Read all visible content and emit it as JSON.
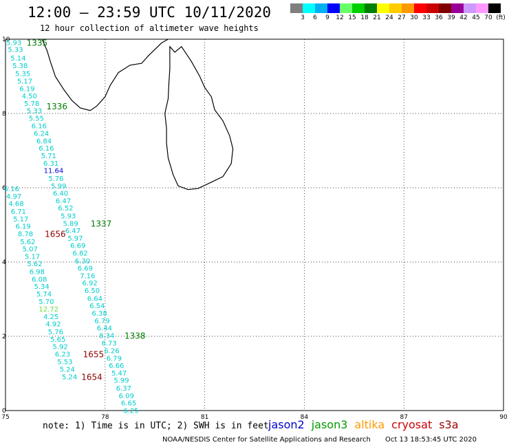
{
  "header": {
    "title": "12:00 – 23:59 UTC 10/11/2020",
    "subtitle": "12 hour collection of altimeter wave heights"
  },
  "legend_scale": {
    "colors": [
      "#7f7f7f",
      "#00ffff",
      "#00b0f0",
      "#0000ff",
      "#66ff66",
      "#00d000",
      "#008000",
      "#ffff00",
      "#ffcc00",
      "#ff9900",
      "#ff0000",
      "#cc0000",
      "#800000",
      "#990099",
      "#cc99ff",
      "#ff99ff",
      "#000000"
    ],
    "labels": [
      "3",
      "6",
      "9",
      "12",
      "15",
      "18",
      "21",
      "24",
      "27",
      "30",
      "33",
      "36",
      "39",
      "42",
      "45",
      "70",
      "(ft)"
    ]
  },
  "map": {
    "x_axis": {
      "labels": [
        "75",
        "78",
        "81",
        "84",
        "87",
        "90"
      ],
      "values": [
        75,
        78,
        81,
        84,
        87,
        90
      ]
    },
    "y_axis": {
      "labels": [
        "0",
        "2",
        "4",
        "6",
        "8",
        "10"
      ],
      "values": [
        0,
        2,
        4,
        6,
        8,
        10
      ]
    },
    "value_colors": {
      "cyan": "#00cccc",
      "blue": "#0000dd",
      "light_green": "#66dd44"
    },
    "pass_label_colors": {
      "green": "#007a00",
      "maroon": "#8b0000"
    }
  },
  "tracks": [
    {
      "name": "1335-1338 track",
      "points": [
        {
          "lon": 75.25,
          "lat": 9.92,
          "v": "5.93",
          "c": "cyan"
        },
        {
          "lon": 75.3,
          "lat": 9.73,
          "v": "5.33",
          "c": "cyan"
        },
        {
          "lon": 75.38,
          "lat": 9.5,
          "v": "5.14",
          "c": "cyan"
        },
        {
          "lon": 75.44,
          "lat": 9.3,
          "v": "5.38",
          "c": "cyan"
        },
        {
          "lon": 75.52,
          "lat": 9.08,
          "v": "5.35",
          "c": "cyan"
        },
        {
          "lon": 75.58,
          "lat": 8.88,
          "v": "5.17",
          "c": "cyan"
        },
        {
          "lon": 75.65,
          "lat": 8.68,
          "v": "6.19",
          "c": "cyan"
        },
        {
          "lon": 75.72,
          "lat": 8.48,
          "v": "4.50",
          "c": "cyan"
        },
        {
          "lon": 75.79,
          "lat": 8.28,
          "v": "5.78",
          "c": "cyan"
        },
        {
          "lon": 75.87,
          "lat": 8.08,
          "v": "5.33",
          "c": "cyan"
        },
        {
          "lon": 75.93,
          "lat": 7.88,
          "v": "5.55",
          "c": "cyan"
        },
        {
          "lon": 76.01,
          "lat": 7.68,
          "v": "6.16",
          "c": "cyan"
        },
        {
          "lon": 76.08,
          "lat": 7.47,
          "v": "6.24",
          "c": "cyan"
        },
        {
          "lon": 76.16,
          "lat": 7.27,
          "v": "6.84",
          "c": "cyan"
        },
        {
          "lon": 76.23,
          "lat": 7.07,
          "v": "6.16",
          "c": "cyan"
        },
        {
          "lon": 76.3,
          "lat": 6.87,
          "v": "5.71",
          "c": "cyan"
        },
        {
          "lon": 76.37,
          "lat": 6.67,
          "v": "6.31",
          "c": "cyan"
        },
        {
          "lon": 76.45,
          "lat": 6.47,
          "v": "11.64",
          "c": "blue"
        },
        {
          "lon": 76.52,
          "lat": 6.26,
          "v": "5.76",
          "c": "cyan"
        },
        {
          "lon": 76.6,
          "lat": 6.06,
          "v": "5.99",
          "c": "cyan"
        },
        {
          "lon": 76.66,
          "lat": 5.86,
          "v": "6.40",
          "c": "cyan"
        },
        {
          "lon": 76.74,
          "lat": 5.66,
          "v": "6.47",
          "c": "cyan"
        },
        {
          "lon": 76.81,
          "lat": 5.46,
          "v": "6.52",
          "c": "cyan"
        },
        {
          "lon": 76.89,
          "lat": 5.25,
          "v": "5.93",
          "c": "cyan"
        },
        {
          "lon": 76.96,
          "lat": 5.05,
          "v": "5.89",
          "c": "cyan"
        },
        {
          "lon": 77.03,
          "lat": 4.85,
          "v": "6.47",
          "c": "cyan"
        },
        {
          "lon": 77.1,
          "lat": 4.65,
          "v": "5.97",
          "c": "cyan"
        },
        {
          "lon": 77.18,
          "lat": 4.45,
          "v": "6.69",
          "c": "cyan"
        },
        {
          "lon": 77.25,
          "lat": 4.25,
          "v": "6.82",
          "c": "cyan"
        },
        {
          "lon": 77.32,
          "lat": 4.04,
          "v": "6.30",
          "c": "cyan"
        },
        {
          "lon": 77.4,
          "lat": 3.84,
          "v": "6.69",
          "c": "cyan"
        },
        {
          "lon": 77.47,
          "lat": 3.64,
          "v": "7.16",
          "c": "cyan"
        },
        {
          "lon": 77.54,
          "lat": 3.44,
          "v": "6.92",
          "c": "cyan"
        },
        {
          "lon": 77.61,
          "lat": 3.24,
          "v": "6.50",
          "c": "cyan"
        },
        {
          "lon": 77.69,
          "lat": 3.03,
          "v": "6.64",
          "c": "cyan"
        },
        {
          "lon": 77.76,
          "lat": 2.83,
          "v": "6.54",
          "c": "cyan"
        },
        {
          "lon": 77.83,
          "lat": 2.63,
          "v": "6.38",
          "c": "cyan"
        },
        {
          "lon": 77.91,
          "lat": 2.43,
          "v": "6.79",
          "c": "cyan"
        },
        {
          "lon": 77.98,
          "lat": 2.23,
          "v": "6.44",
          "c": "cyan"
        },
        {
          "lon": 78.05,
          "lat": 2.03,
          "v": "8.34",
          "c": "cyan"
        },
        {
          "lon": 78.12,
          "lat": 1.82,
          "v": "6.73",
          "c": "cyan"
        },
        {
          "lon": 78.2,
          "lat": 1.62,
          "v": "6.26",
          "c": "cyan"
        },
        {
          "lon": 78.27,
          "lat": 1.42,
          "v": "6.79",
          "c": "cyan"
        },
        {
          "lon": 78.34,
          "lat": 1.22,
          "v": "6.66",
          "c": "cyan"
        },
        {
          "lon": 78.42,
          "lat": 1.02,
          "v": "5.47",
          "c": "cyan"
        },
        {
          "lon": 78.49,
          "lat": 0.82,
          "v": "5.99",
          "c": "cyan"
        },
        {
          "lon": 78.56,
          "lat": 0.61,
          "v": "6.37",
          "c": "cyan"
        },
        {
          "lon": 78.64,
          "lat": 0.41,
          "v": "6.09",
          "c": "cyan"
        },
        {
          "lon": 78.71,
          "lat": 0.21,
          "v": "6.65",
          "c": "cyan"
        },
        {
          "lon": 78.78,
          "lat": 0.01,
          "v": "6.25",
          "c": "cyan"
        }
      ]
    },
    {
      "name": "1654-1656 track",
      "points": [
        {
          "lon": 75.18,
          "lat": 5.98,
          "v": "6.16",
          "c": "cyan"
        },
        {
          "lon": 75.25,
          "lat": 5.78,
          "v": "4.97",
          "c": "cyan"
        },
        {
          "lon": 75.32,
          "lat": 5.58,
          "v": "4.68",
          "c": "cyan"
        },
        {
          "lon": 75.39,
          "lat": 5.37,
          "v": "6.71",
          "c": "cyan"
        },
        {
          "lon": 75.46,
          "lat": 5.17,
          "v": "5.17",
          "c": "cyan"
        },
        {
          "lon": 75.53,
          "lat": 4.97,
          "v": "6.19",
          "c": "cyan"
        },
        {
          "lon": 75.6,
          "lat": 4.77,
          "v": "8.78",
          "c": "cyan"
        },
        {
          "lon": 75.67,
          "lat": 4.56,
          "v": "5.62",
          "c": "cyan"
        },
        {
          "lon": 75.74,
          "lat": 4.36,
          "v": "5.07",
          "c": "cyan"
        },
        {
          "lon": 75.81,
          "lat": 4.16,
          "v": "5.17",
          "c": "cyan"
        },
        {
          "lon": 75.88,
          "lat": 3.96,
          "v": "5.62",
          "c": "cyan"
        },
        {
          "lon": 75.95,
          "lat": 3.75,
          "v": "6.98",
          "c": "cyan"
        },
        {
          "lon": 76.02,
          "lat": 3.55,
          "v": "6.08",
          "c": "cyan"
        },
        {
          "lon": 76.09,
          "lat": 3.35,
          "v": "5.34",
          "c": "cyan"
        },
        {
          "lon": 76.16,
          "lat": 3.15,
          "v": "5.74",
          "c": "cyan"
        },
        {
          "lon": 76.23,
          "lat": 2.94,
          "v": "5.70",
          "c": "cyan"
        },
        {
          "lon": 76.3,
          "lat": 2.74,
          "v": "12.72",
          "c": "light_green"
        },
        {
          "lon": 76.37,
          "lat": 2.54,
          "v": "4.25",
          "c": "cyan"
        },
        {
          "lon": 76.44,
          "lat": 2.34,
          "v": "4.92",
          "c": "cyan"
        },
        {
          "lon": 76.51,
          "lat": 2.13,
          "v": "5.76",
          "c": "cyan"
        },
        {
          "lon": 76.58,
          "lat": 1.93,
          "v": "5.65",
          "c": "cyan"
        },
        {
          "lon": 76.65,
          "lat": 1.73,
          "v": "5.92",
          "c": "cyan"
        },
        {
          "lon": 76.72,
          "lat": 1.53,
          "v": "6.23",
          "c": "cyan"
        },
        {
          "lon": 76.79,
          "lat": 1.32,
          "v": "5.53",
          "c": "cyan"
        },
        {
          "lon": 76.86,
          "lat": 1.12,
          "v": "5.24",
          "c": "cyan"
        },
        {
          "lon": 76.93,
          "lat": 0.92,
          "v": "5.24",
          "c": "cyan"
        }
      ]
    }
  ],
  "pass_labels": [
    {
      "text": "1335",
      "lon": 75.95,
      "lat": 9.92,
      "c": "green"
    },
    {
      "text": "1336",
      "lon": 76.55,
      "lat": 8.2,
      "c": "green"
    },
    {
      "text": "1337",
      "lon": 77.88,
      "lat": 5.05,
      "c": "green"
    },
    {
      "text": "1656",
      "lon": 76.5,
      "lat": 4.77,
      "c": "maroon"
    },
    {
      "text": "1338",
      "lon": 78.9,
      "lat": 2.03,
      "c": "green"
    },
    {
      "text": "1655",
      "lon": 77.65,
      "lat": 1.53,
      "c": "maroon"
    },
    {
      "text": "1654",
      "lon": 77.6,
      "lat": 0.92,
      "c": "maroon"
    }
  ],
  "coastline": {
    "india": [
      [
        76.1,
        10.0
      ],
      [
        76.25,
        9.7
      ],
      [
        76.35,
        9.4
      ],
      [
        76.5,
        9.0
      ],
      [
        76.75,
        8.65
      ],
      [
        77.0,
        8.35
      ],
      [
        77.25,
        8.15
      ],
      [
        77.55,
        8.08
      ],
      [
        77.75,
        8.2
      ],
      [
        78.0,
        8.45
      ],
      [
        78.15,
        8.75
      ],
      [
        78.4,
        9.1
      ],
      [
        78.75,
        9.3
      ],
      [
        79.1,
        9.35
      ],
      [
        79.3,
        9.55
      ],
      [
        79.7,
        9.9
      ],
      [
        79.9,
        10.0
      ]
    ],
    "sri_lanka": [
      [
        79.95,
        9.8
      ],
      [
        80.1,
        9.65
      ],
      [
        80.3,
        9.8
      ],
      [
        80.45,
        9.6
      ],
      [
        80.6,
        9.4
      ],
      [
        80.85,
        9.0
      ],
      [
        81.0,
        8.7
      ],
      [
        81.2,
        8.45
      ],
      [
        81.3,
        8.1
      ],
      [
        81.55,
        7.8
      ],
      [
        81.75,
        7.4
      ],
      [
        81.85,
        7.05
      ],
      [
        81.8,
        6.65
      ],
      [
        81.55,
        6.3
      ],
      [
        81.2,
        6.15
      ],
      [
        80.8,
        5.98
      ],
      [
        80.5,
        5.95
      ],
      [
        80.2,
        6.05
      ],
      [
        80.05,
        6.35
      ],
      [
        79.9,
        6.8
      ],
      [
        79.85,
        7.2
      ],
      [
        79.85,
        7.6
      ],
      [
        79.8,
        8.0
      ],
      [
        79.9,
        8.4
      ],
      [
        79.92,
        8.8
      ],
      [
        79.95,
        9.2
      ],
      [
        79.95,
        9.8
      ]
    ]
  },
  "notes": {
    "text": "note: 1) Time is in UTC; 2) SWH is in feet",
    "satellites": [
      {
        "name": "jason2",
        "color": "#0000cc"
      },
      {
        "name": "jason3",
        "color": "#009900"
      },
      {
        "name": "altika",
        "color": "#ff9900"
      },
      {
        "name": "cryosat",
        "color": "#cc0000"
      },
      {
        "name": "s3a",
        "color": "#990000"
      }
    ],
    "credit": "NOAA/NESDIS Center for Satellite Applications and Research",
    "timestamp": "Oct 13 18:53:45 UTC 2020"
  }
}
